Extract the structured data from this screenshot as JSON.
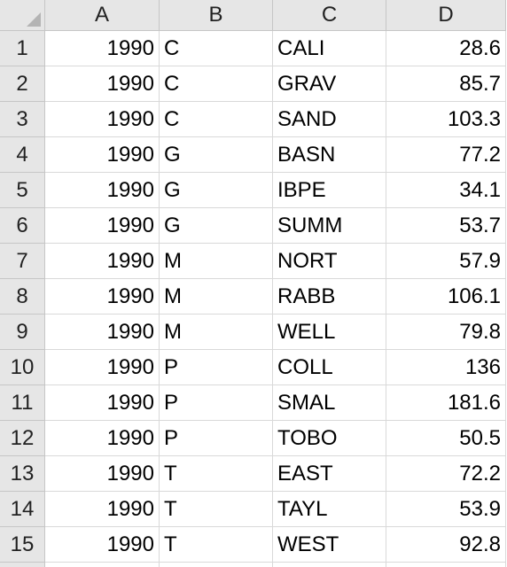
{
  "columns": [
    "A",
    "B",
    "C",
    "D"
  ],
  "rows": [
    {
      "num": "1",
      "a": "1990",
      "b": "C",
      "c": "CALI",
      "d": "28.6"
    },
    {
      "num": "2",
      "a": "1990",
      "b": "C",
      "c": "GRAV",
      "d": "85.7"
    },
    {
      "num": "3",
      "a": "1990",
      "b": "C",
      "c": "SAND",
      "d": "103.3"
    },
    {
      "num": "4",
      "a": "1990",
      "b": "G",
      "c": "BASN",
      "d": "77.2"
    },
    {
      "num": "5",
      "a": "1990",
      "b": "G",
      "c": "IBPE",
      "d": "34.1"
    },
    {
      "num": "6",
      "a": "1990",
      "b": "G",
      "c": "SUMM",
      "d": "53.7"
    },
    {
      "num": "7",
      "a": "1990",
      "b": "M",
      "c": "NORT",
      "d": "57.9"
    },
    {
      "num": "8",
      "a": "1990",
      "b": "M",
      "c": "RABB",
      "d": "106.1"
    },
    {
      "num": "9",
      "a": "1990",
      "b": "M",
      "c": "WELL",
      "d": "79.8"
    },
    {
      "num": "10",
      "a": "1990",
      "b": "P",
      "c": "COLL",
      "d": "136"
    },
    {
      "num": "11",
      "a": "1990",
      "b": "P",
      "c": "SMAL",
      "d": "181.6"
    },
    {
      "num": "12",
      "a": "1990",
      "b": "P",
      "c": "TOBO",
      "d": "50.5"
    },
    {
      "num": "13",
      "a": "1990",
      "b": "T",
      "c": "EAST",
      "d": "72.2"
    },
    {
      "num": "14",
      "a": "1990",
      "b": "T",
      "c": "TAYL",
      "d": "53.9"
    },
    {
      "num": "15",
      "a": "1990",
      "b": "T",
      "c": "WEST",
      "d": "92.8"
    }
  ]
}
